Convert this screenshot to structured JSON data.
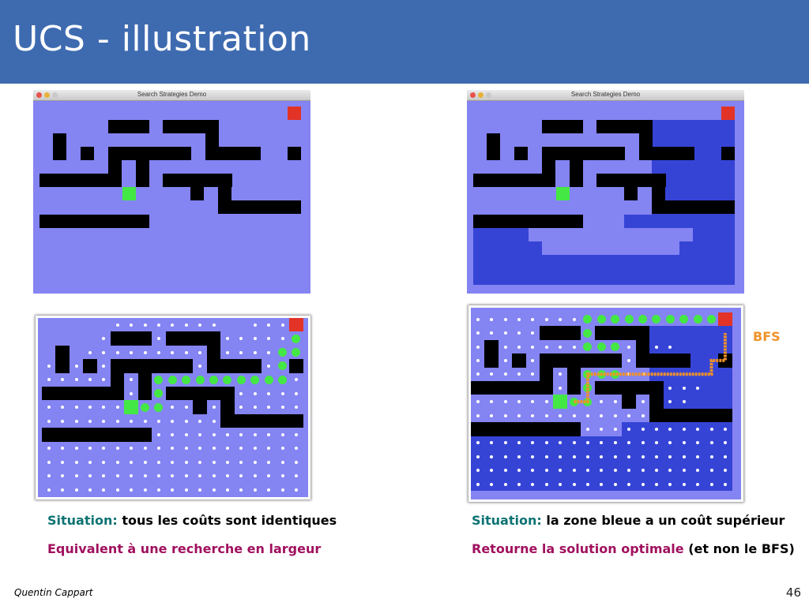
{
  "slide": {
    "title": "UCS - illustration",
    "author": "Quentin Cappart",
    "page_number": "46"
  },
  "windows": {
    "title": "Search Strategies Demo"
  },
  "captions": {
    "left_situation_label": "Situation:",
    "left_situation_text": "tous les coûts sont identiques",
    "left_conclusion": "Equivalent à une recherche en largeur",
    "right_situation_label": "Situation:",
    "right_situation_text": "la zone bleue a un coût supérieur",
    "right_conclusion_highlight": "Retourne la solution optimale",
    "right_conclusion_rest": "(et non le BFS)"
  },
  "bfs_label": "BFS",
  "colors": {
    "title_bar": "#3e6bb0",
    "grid_light": "#8484f3",
    "grid_dark": "#3644d6",
    "wall": "#000000",
    "goal": "#e23326",
    "start": "#44e844",
    "path_dot": "#44e844",
    "bfs_path": "#f0922a",
    "teal": "#0e7373",
    "magenta": "#a0105e"
  },
  "icons": [
    "close-button-icon",
    "minimize-button-icon",
    "zoom-button-icon"
  ]
}
